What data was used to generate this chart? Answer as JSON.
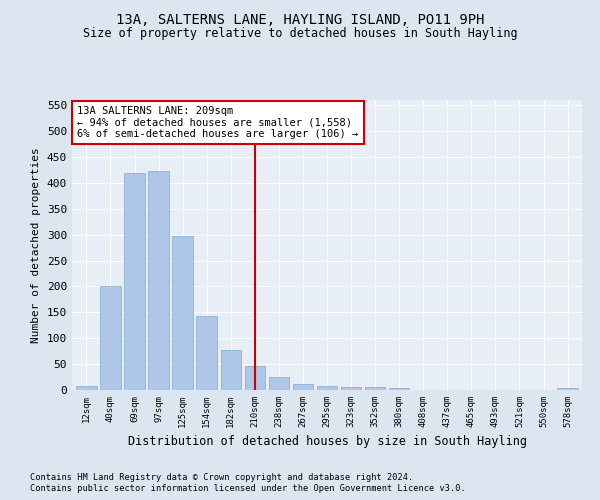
{
  "title": "13A, SALTERNS LANE, HAYLING ISLAND, PO11 9PH",
  "subtitle": "Size of property relative to detached houses in South Hayling",
  "xlabel": "Distribution of detached houses by size in South Hayling",
  "ylabel": "Number of detached properties",
  "categories": [
    "12sqm",
    "40sqm",
    "69sqm",
    "97sqm",
    "125sqm",
    "154sqm",
    "182sqm",
    "210sqm",
    "238sqm",
    "267sqm",
    "295sqm",
    "323sqm",
    "352sqm",
    "380sqm",
    "408sqm",
    "437sqm",
    "465sqm",
    "493sqm",
    "521sqm",
    "550sqm",
    "578sqm"
  ],
  "values": [
    8,
    200,
    420,
    422,
    298,
    143,
    78,
    47,
    25,
    12,
    8,
    5,
    5,
    3,
    0,
    0,
    0,
    0,
    0,
    0,
    3
  ],
  "bar_color": "#aec6e8",
  "bar_edge_color": "#7aafd4",
  "vline_x": 7,
  "vline_color": "#cc0000",
  "annotation_title": "13A SALTERNS LANE: 209sqm",
  "annotation_line1": "← 94% of detached houses are smaller (1,558)",
  "annotation_line2": "6% of semi-detached houses are larger (106) →",
  "annotation_box_color": "#cc0000",
  "ylim": [
    0,
    560
  ],
  "yticks": [
    0,
    50,
    100,
    150,
    200,
    250,
    300,
    350,
    400,
    450,
    500,
    550
  ],
  "footer1": "Contains HM Land Registry data © Crown copyright and database right 2024.",
  "footer2": "Contains public sector information licensed under the Open Government Licence v3.0.",
  "bg_color": "#dce6f0",
  "plot_bg_color": "#e8eef5"
}
